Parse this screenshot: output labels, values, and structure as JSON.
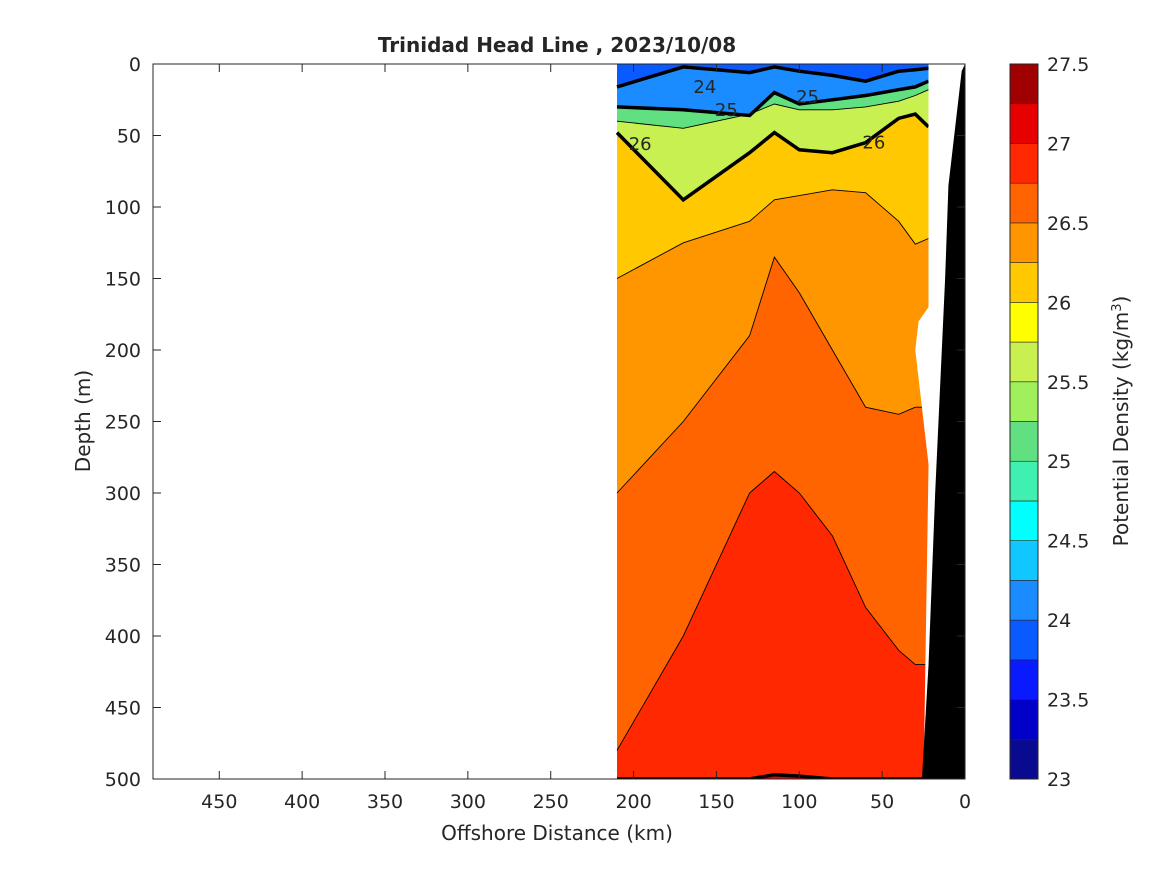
{
  "chart_data": {
    "type": "heatmap",
    "title": "Trinidad Head Line , 2023/10/08",
    "xlabel": "Offshore Distance (km)",
    "ylabel": "Depth (m)",
    "colorbar_label_prefix": "Potential Density (kg/m",
    "colorbar_label_exp": "3",
    "colorbar_label_suffix": ")",
    "xlim": [
      490,
      0
    ],
    "ylim": [
      0,
      500
    ],
    "x_ticks": [
      450,
      400,
      350,
      300,
      250,
      200,
      150,
      100,
      50,
      0
    ],
    "y_ticks": [
      0,
      50,
      100,
      150,
      200,
      250,
      300,
      350,
      400,
      450,
      500
    ],
    "colorbar": {
      "range": [
        23,
        27.5
      ],
      "step": 0.25,
      "ticks": [
        23,
        23.5,
        24,
        24.5,
        25,
        25.5,
        26,
        26.5,
        27,
        27.5
      ],
      "colors": [
        "#0a0a90",
        "#0000c8",
        "#0a1aff",
        "#0a5bff",
        "#1a8cff",
        "#10c8ff",
        "#00ffff",
        "#40f0b0",
        "#60e080",
        "#9ff05a",
        "#c8f050",
        "#ffff00",
        "#ffc800",
        "#ff9600",
        "#ff6400",
        "#ff2800",
        "#e60000",
        "#a00000"
      ]
    },
    "contour_labels": [
      {
        "text": "24",
        "x": 157,
        "y": 16
      },
      {
        "text": "25",
        "x": 144,
        "y": 32
      },
      {
        "text": "25",
        "x": 95,
        "y": 23
      },
      {
        "text": "26",
        "x": 196,
        "y": 56
      },
      {
        "text": "26",
        "x": 55,
        "y": 55
      }
    ],
    "profile": {
      "x": [
        210,
        170,
        130,
        115,
        100,
        80,
        60,
        40,
        30,
        22
      ],
      "isopycnal_depth": {
        "24": [
          16,
          2,
          6,
          2,
          5,
          8,
          12,
          5,
          4,
          3
        ],
        "25": [
          30,
          32,
          36,
          20,
          28,
          25,
          22,
          18,
          16,
          12
        ],
        "25.5": [
          40,
          45,
          35,
          28,
          32,
          32,
          30,
          26,
          22,
          18
        ],
        "26": [
          48,
          95,
          62,
          48,
          60,
          62,
          55,
          38,
          35,
          44
        ],
        "26.25": [
          150,
          125,
          110,
          95,
          92,
          88,
          90,
          110,
          126,
          122
        ],
        "26.5": [
          300,
          250,
          190,
          135,
          160,
          200,
          240,
          245,
          240,
          240
        ],
        "26.75": [
          480,
          400,
          300,
          285,
          300,
          330,
          380,
          410,
          420,
          420
        ],
        "27": [
          500,
          500,
          500,
          497,
          498,
          500,
          500,
          500,
          500,
          500
        ]
      }
    },
    "data_extent": {
      "x_min": 22,
      "x_max": 210,
      "y_max": 500
    },
    "bottom_topography": "black"
  }
}
